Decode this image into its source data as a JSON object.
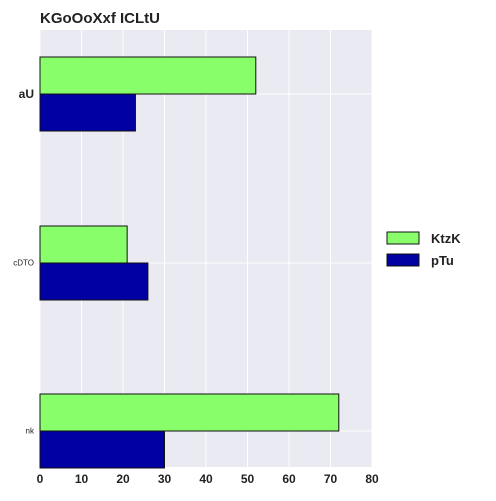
{
  "chart_data": {
    "type": "bar",
    "orientation": "horizontal",
    "title": "KGoOoXxf ICLtU",
    "categories": [
      "aU",
      "cDTO",
      "nk"
    ],
    "series": [
      {
        "name": "KtzK",
        "values": [
          52,
          21,
          72
        ],
        "color": "#88ff6a"
      },
      {
        "name": "pTu",
        "values": [
          23,
          26,
          30
        ],
        "color": "#0000a3"
      }
    ],
    "xlim": [
      0,
      80
    ],
    "xticks": [
      "0",
      "10",
      "20",
      "30",
      "40",
      "50",
      "60",
      "70",
      "80"
    ],
    "grid": true,
    "legend_position": "right"
  }
}
